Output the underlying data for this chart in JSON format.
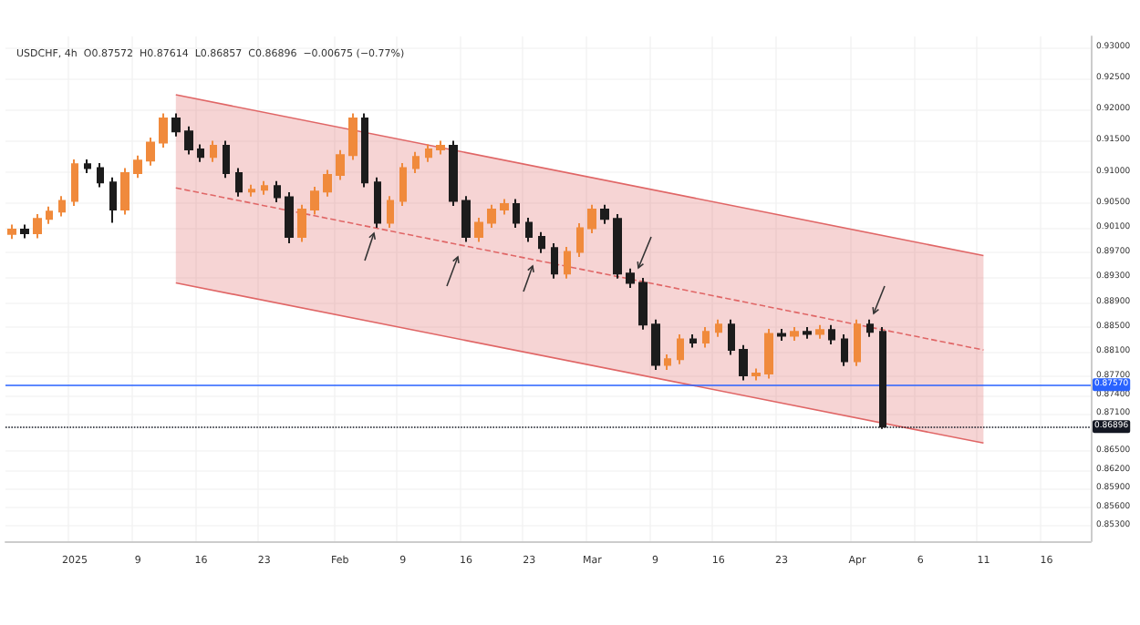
{
  "chart_data": {
    "type": "candlestick",
    "title": "USDCHF, 4h  O0.87572  H0.87614  L0.86857  C0.86896  −0.00675 (−0.77%)",
    "categories": [
      null,
      null,
      null,
      null,
      null,
      "2025",
      null,
      null,
      null,
      null,
      "9",
      null,
      null,
      null,
      null,
      "16",
      null,
      null,
      null,
      null,
      "23",
      null,
      null,
      null,
      null,
      null,
      "Feb",
      null,
      null,
      null,
      null,
      "9",
      null,
      null,
      null,
      null,
      "16",
      null,
      null,
      null,
      null,
      "23",
      null,
      null,
      null,
      null,
      "Mar",
      null,
      null,
      null,
      null,
      "9",
      null,
      null,
      null,
      null,
      "16",
      null,
      null,
      null,
      null,
      "23",
      null,
      null,
      null,
      null,
      null,
      "Apr",
      null,
      null,
      null,
      null,
      "6",
      null,
      null,
      null,
      null,
      "11",
      null,
      null,
      null,
      null,
      "16",
      null,
      null,
      null
    ],
    "ohlc": [
      [
        0.9,
        0.9015,
        0.8992,
        0.9007
      ],
      [
        0.9007,
        0.9015,
        0.8993,
        0.9001
      ],
      [
        0.9001,
        0.9032,
        0.8993,
        0.9024
      ],
      [
        0.9024,
        0.9044,
        0.9016,
        0.9036
      ],
      [
        0.9036,
        0.9061,
        0.9028,
        0.9053
      ],
      [
        0.9053,
        0.912,
        0.9045,
        0.9112
      ],
      [
        0.9112,
        0.912,
        0.9098,
        0.9106
      ],
      [
        0.9106,
        0.9114,
        0.9075,
        0.9083
      ],
      [
        0.9083,
        0.9091,
        0.9018,
        0.9039
      ],
      [
        0.9039,
        0.9106,
        0.9031,
        0.9098
      ],
      [
        0.9098,
        0.9126,
        0.909,
        0.9118
      ],
      [
        0.9118,
        0.9155,
        0.911,
        0.9147
      ],
      [
        0.9147,
        0.9194,
        0.9139,
        0.9186
      ],
      [
        0.9186,
        0.9194,
        0.9157,
        0.9165
      ],
      [
        0.9165,
        0.9173,
        0.9128,
        0.9136
      ],
      [
        0.9136,
        0.9144,
        0.9116,
        0.9124
      ],
      [
        0.9124,
        0.915,
        0.9116,
        0.9142
      ],
      [
        0.9142,
        0.915,
        0.909,
        0.9098
      ],
      [
        0.9098,
        0.9106,
        0.906,
        0.9068
      ],
      [
        0.9068,
        0.9079,
        0.906,
        0.9071
      ],
      [
        0.9071,
        0.9085,
        0.9063,
        0.9077
      ],
      [
        0.9077,
        0.9085,
        0.9051,
        0.9059
      ],
      [
        0.9059,
        0.9067,
        0.8985,
        0.8995
      ],
      [
        0.8995,
        0.9047,
        0.8987,
        0.9039
      ],
      [
        0.9039,
        0.9076,
        0.9031,
        0.9068
      ],
      [
        0.9068,
        0.9103,
        0.906,
        0.9095
      ],
      [
        0.9095,
        0.9135,
        0.9087,
        0.9127
      ],
      [
        0.9127,
        0.9194,
        0.9119,
        0.9186
      ],
      [
        0.9186,
        0.9194,
        0.9075,
        0.9083
      ],
      [
        0.9083,
        0.9091,
        0.901,
        0.9018
      ],
      [
        0.9018,
        0.9061,
        0.901,
        0.9053
      ],
      [
        0.9053,
        0.9114,
        0.9045,
        0.9106
      ],
      [
        0.9106,
        0.9132,
        0.9098,
        0.9124
      ],
      [
        0.9124,
        0.9144,
        0.9116,
        0.9136
      ],
      [
        0.9136,
        0.915,
        0.9128,
        0.9142
      ],
      [
        0.9142,
        0.915,
        0.9045,
        0.9053
      ],
      [
        0.9053,
        0.9061,
        0.8987,
        0.8995
      ],
      [
        0.8995,
        0.9026,
        0.8987,
        0.9018
      ],
      [
        0.9018,
        0.9047,
        0.901,
        0.9039
      ],
      [
        0.9039,
        0.9056,
        0.9031,
        0.9048
      ],
      [
        0.9048,
        0.9056,
        0.901,
        0.9018
      ],
      [
        0.9018,
        0.9026,
        0.8987,
        0.8995
      ],
      [
        0.8995,
        0.9003,
        0.8969,
        0.8977
      ],
      [
        0.8977,
        0.8985,
        0.8928,
        0.8936
      ],
      [
        0.8936,
        0.8979,
        0.8928,
        0.8971
      ],
      [
        0.8971,
        0.9017,
        0.8963,
        0.9009
      ],
      [
        0.9009,
        0.9047,
        0.9001,
        0.9039
      ],
      [
        0.9039,
        0.9047,
        0.9016,
        0.9024
      ],
      [
        0.9024,
        0.9032,
        0.8928,
        0.8936
      ],
      [
        0.8936,
        0.8944,
        0.8913,
        0.8921
      ],
      [
        0.8921,
        0.8929,
        0.8846,
        0.8854
      ],
      [
        0.8854,
        0.8862,
        0.8781,
        0.8789
      ],
      [
        0.8789,
        0.8806,
        0.8781,
        0.8798
      ],
      [
        0.8798,
        0.8838,
        0.879,
        0.883
      ],
      [
        0.883,
        0.8838,
        0.8817,
        0.8825
      ],
      [
        0.8825,
        0.885,
        0.8817,
        0.8842
      ],
      [
        0.8842,
        0.8862,
        0.8834,
        0.8854
      ],
      [
        0.8854,
        0.8862,
        0.8805,
        0.8813
      ],
      [
        0.8813,
        0.8821,
        0.8764,
        0.8772
      ],
      [
        0.8772,
        0.8783,
        0.8764,
        0.8775
      ],
      [
        0.8775,
        0.8847,
        0.8767,
        0.8839
      ],
      [
        0.8839,
        0.8847,
        0.8828,
        0.8836
      ],
      [
        0.8836,
        0.885,
        0.8828,
        0.8842
      ],
      [
        0.8842,
        0.885,
        0.8831,
        0.8839
      ],
      [
        0.8839,
        0.8853,
        0.8831,
        0.8845
      ],
      [
        0.8845,
        0.8853,
        0.8822,
        0.883
      ],
      [
        0.883,
        0.8838,
        0.8787,
        0.8795
      ],
      [
        0.8795,
        0.8862,
        0.8787,
        0.8854
      ],
      [
        0.8854,
        0.8862,
        0.8834,
        0.8842
      ],
      [
        0.8842,
        0.885,
        0.86857,
        0.86896
      ],
      null,
      null,
      null,
      null,
      null,
      null,
      null,
      null,
      null,
      null,
      null,
      null,
      null,
      null,
      null,
      null
    ],
    "colors": [
      "#f08a3c",
      "#1c1c1c",
      "#f08a3c",
      "#f08a3c",
      "#f08a3c",
      "#f08a3c",
      "#1c1c1c",
      "#1c1c1c",
      "#1c1c1c",
      "#f08a3c",
      "#f08a3c",
      "#f08a3c",
      "#f08a3c",
      "#1c1c1c",
      "#1c1c1c",
      "#1c1c1c",
      "#f08a3c",
      "#1c1c1c",
      "#1c1c1c",
      "#f08a3c",
      "#f08a3c",
      "#1c1c1c",
      "#1c1c1c",
      "#f08a3c",
      "#f08a3c",
      "#f08a3c",
      "#f08a3c",
      "#f08a3c",
      "#1c1c1c",
      "#1c1c1c",
      "#f08a3c",
      "#f08a3c",
      "#f08a3c",
      "#f08a3c",
      "#f08a3c",
      "#1c1c1c",
      "#1c1c1c",
      "#f08a3c",
      "#f08a3c",
      "#f08a3c",
      "#1c1c1c",
      "#1c1c1c",
      "#1c1c1c",
      "#1c1c1c",
      "#f08a3c",
      "#f08a3c",
      "#f08a3c",
      "#1c1c1c",
      "#1c1c1c",
      "#1c1c1c",
      "#1c1c1c",
      "#1c1c1c",
      "#f08a3c",
      "#f08a3c",
      "#1c1c1c",
      "#f08a3c",
      "#f08a3c",
      "#1c1c1c",
      "#1c1c1c",
      "#f08a3c",
      "#f08a3c",
      "#1c1c1c",
      "#f08a3c",
      "#1c1c1c",
      "#f08a3c",
      "#1c1c1c",
      "#1c1c1c",
      "#f08a3c",
      "#1c1c1c",
      "#1c1c1c",
      null,
      null,
      null,
      null,
      null,
      null,
      null,
      null,
      null,
      null,
      null,
      null,
      null,
      null,
      null,
      null
    ],
    "series": [
      {
        "type": "line",
        "color": "#e06666",
        "line_style": "dashed",
        "values": [
          null,
          null,
          null,
          null,
          null,
          null,
          null,
          null,
          null,
          null,
          null,
          null,
          null,
          0.9074,
          null,
          null,
          null,
          null,
          null,
          null,
          null,
          null,
          null,
          null,
          null,
          null,
          null,
          null,
          null,
          null,
          null,
          null,
          null,
          null,
          null,
          null,
          null,
          null,
          null,
          null,
          null,
          null,
          null,
          null,
          null,
          null,
          null,
          null,
          null,
          null,
          null,
          null,
          null,
          null,
          null,
          null,
          null,
          null,
          null,
          null,
          null,
          null,
          null,
          null,
          null,
          null,
          null,
          null,
          null,
          null,
          null,
          null,
          null,
          null,
          null,
          null,
          null,
          0.8813,
          null,
          null,
          null,
          null,
          null,
          null,
          null,
          null
        ],
        "lower": [
          null,
          null,
          null,
          null,
          null,
          null,
          null,
          null,
          null,
          null,
          null,
          null,
          null,
          0.8921,
          null,
          null,
          null,
          null,
          null,
          null,
          null,
          null,
          null,
          null,
          null,
          null,
          null,
          null,
          null,
          null,
          null,
          null,
          null,
          null,
          null,
          null,
          null,
          null,
          null,
          null,
          null,
          null,
          null,
          null,
          null,
          null,
          null,
          null,
          null,
          null,
          null,
          null,
          null,
          null,
          null,
          null,
          null,
          null,
          null,
          null,
          null,
          null,
          null,
          null,
          null,
          null,
          null,
          null,
          null,
          null,
          null,
          null,
          null,
          null,
          null,
          null,
          null,
          0.8663,
          null,
          null,
          null,
          null,
          null,
          null,
          null,
          null
        ],
        "upper": [
          null,
          null,
          null,
          null,
          null,
          null,
          null,
          null,
          null,
          null,
          null,
          null,
          null,
          0.9224,
          null,
          null,
          null,
          null,
          null,
          null,
          null,
          null,
          null,
          null,
          null,
          null,
          null,
          null,
          null,
          null,
          null,
          null,
          null,
          null,
          null,
          null,
          null,
          null,
          null,
          null,
          null,
          null,
          null,
          null,
          null,
          null,
          null,
          null,
          null,
          null,
          null,
          null,
          null,
          null,
          null,
          null,
          null,
          null,
          null,
          null,
          null,
          null,
          null,
          null,
          null,
          null,
          null,
          null,
          null,
          null,
          null,
          null,
          null,
          null,
          null,
          null,
          null,
          0.8965,
          null,
          null,
          null,
          null,
          null,
          null,
          null,
          null
        ]
      },
      {
        "type": "line",
        "color": "#e06666",
        "line_style": "solid",
        "values": [
          null,
          null,
          null,
          null,
          null,
          null,
          null,
          null,
          null,
          null,
          null,
          null,
          null,
          0.9224,
          null,
          null,
          null,
          null,
          null,
          null,
          null,
          null,
          null,
          null,
          null,
          null,
          null,
          null,
          null,
          null,
          null,
          null,
          null,
          null,
          null,
          null,
          null,
          null,
          null,
          null,
          null,
          null,
          null,
          null,
          null,
          null,
          null,
          null,
          null,
          null,
          null,
          null,
          null,
          null,
          null,
          null,
          null,
          null,
          null,
          null,
          null,
          null,
          null,
          null,
          null,
          null,
          null,
          null,
          null,
          null,
          null,
          null,
          null,
          null,
          null,
          null,
          null,
          0.8965,
          null,
          null,
          null,
          null,
          null,
          null,
          null,
          null
        ]
      },
      {
        "type": "line",
        "color": "#e06666",
        "line_style": "solid",
        "values": [
          null,
          null,
          null,
          null,
          null,
          null,
          null,
          null,
          null,
          null,
          null,
          null,
          null,
          0.8921,
          null,
          null,
          null,
          null,
          null,
          null,
          null,
          null,
          null,
          null,
          null,
          null,
          null,
          null,
          null,
          null,
          null,
          null,
          null,
          null,
          null,
          null,
          null,
          null,
          null,
          null,
          null,
          null,
          null,
          null,
          null,
          null,
          null,
          null,
          null,
          null,
          null,
          null,
          null,
          null,
          null,
          null,
          null,
          null,
          null,
          null,
          null,
          null,
          null,
          null,
          null,
          null,
          null,
          null,
          null,
          null,
          null,
          null,
          null,
          null,
          null,
          null,
          null,
          0.8663,
          null,
          null,
          null,
          null,
          null,
          null,
          null,
          null
        ]
      }
    ],
    "ref_lines": [
      {
        "axis": "y",
        "value": 0.8757,
        "label": "0.87570",
        "color": "#2962ff",
        "line_style": "solid"
      },
      {
        "axis": "y",
        "value": 0.86896,
        "label": "0.86896",
        "color": "#131722",
        "line_style": "dotted"
      }
    ],
    "ylim": [
      0.8505,
      0.9318
    ],
    "yticks": [
      {
        "value": 0.853,
        "label": "0.85300"
      },
      {
        "value": 0.856,
        "label": "0.85600"
      },
      {
        "value": 0.859,
        "label": "0.85900"
      },
      {
        "value": 0.862,
        "label": "0.86200"
      },
      {
        "value": 0.865,
        "label": "0.86500"
      },
      {
        "value": 0.871,
        "label": "0.87100"
      },
      {
        "value": 0.874,
        "label": "0.87400"
      },
      {
        "value": 0.877,
        "label": "0.87700"
      },
      {
        "value": 0.881,
        "label": "0.88100"
      },
      {
        "value": 0.885,
        "label": "0.88500"
      },
      {
        "value": 0.889,
        "label": "0.88900"
      },
      {
        "value": 0.893,
        "label": "0.89300"
      },
      {
        "value": 0.897,
        "label": "0.89700"
      },
      {
        "value": 0.901,
        "label": "0.90100"
      },
      {
        "value": 0.905,
        "label": "0.90500"
      },
      {
        "value": 0.91,
        "label": "0.91000"
      },
      {
        "value": 0.915,
        "label": "0.91500"
      },
      {
        "value": 0.92,
        "label": "0.92000"
      },
      {
        "value": 0.925,
        "label": "0.92500"
      },
      {
        "value": 0.93,
        "label": "0.93000"
      }
    ],
    "grid": true
  }
}
